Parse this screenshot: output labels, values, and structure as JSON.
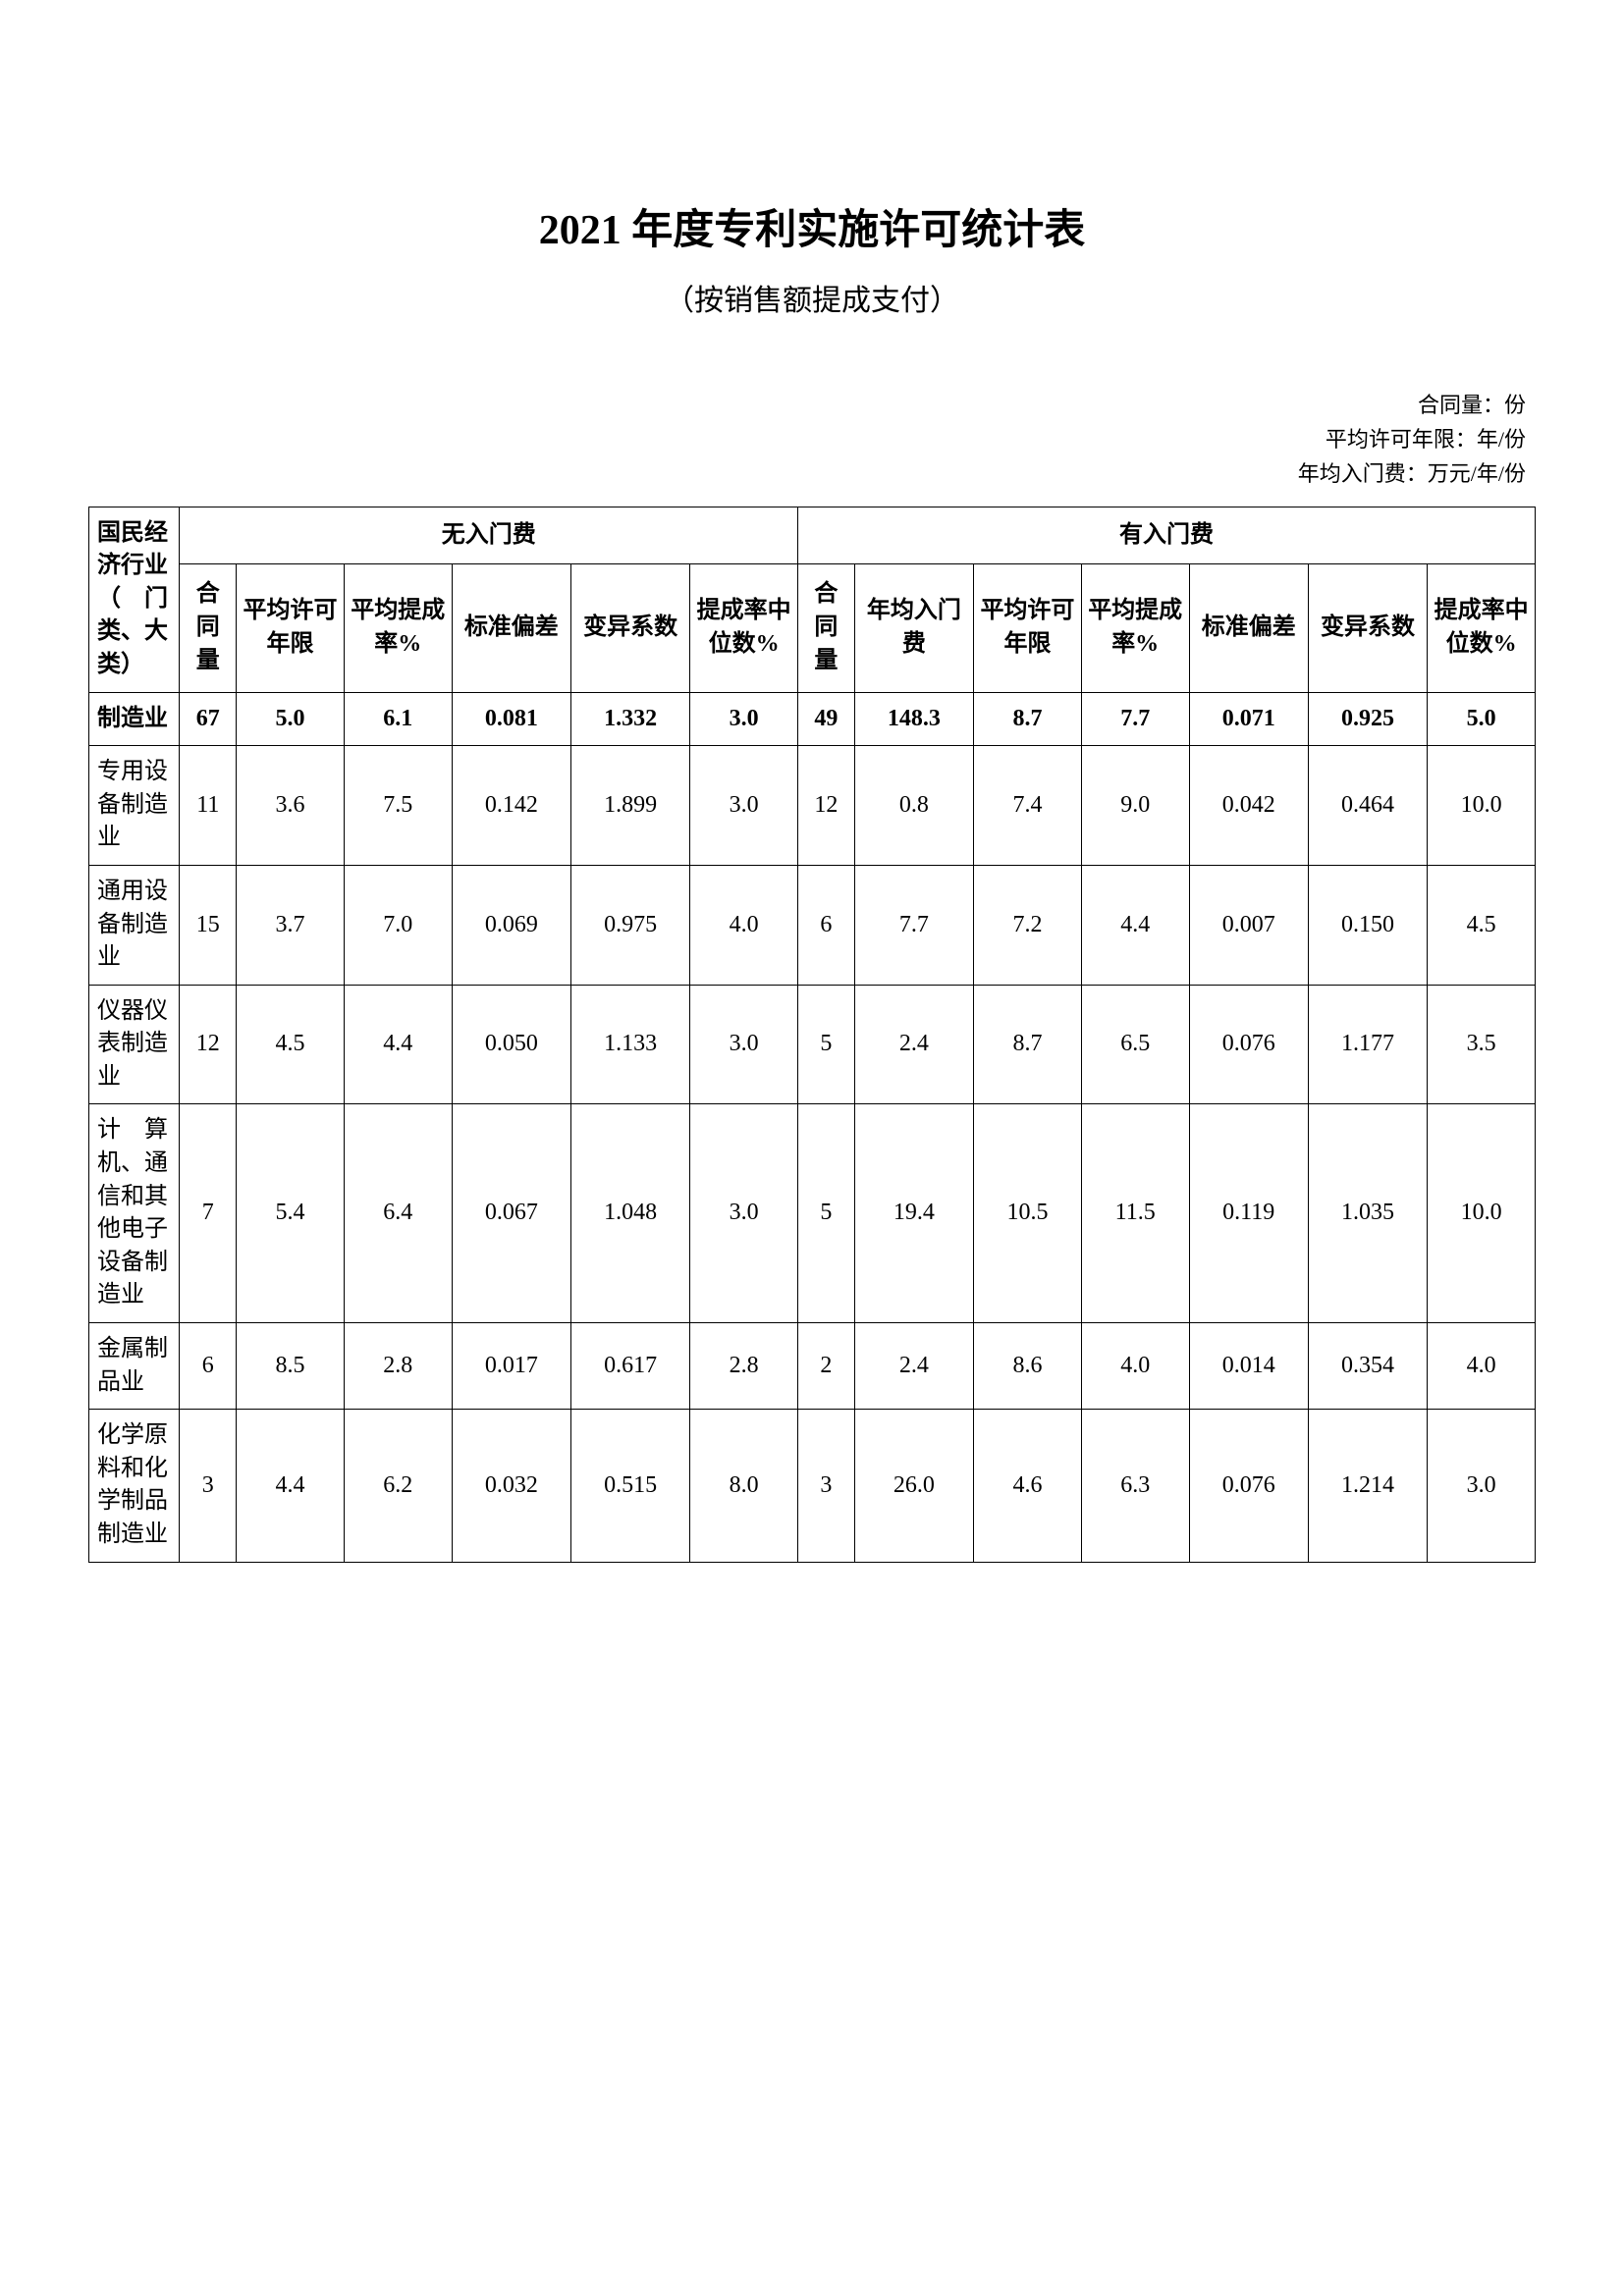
{
  "title": "2021 年度专利实施许可统计表",
  "subtitle": "（按销售额提成支付）",
  "meta": {
    "line1": "合同量：份",
    "line2": "平均许可年限：年/份",
    "line3": "年均入门费：万元/年/份"
  },
  "headers": {
    "category": "国民经济行业（　门类、大类）",
    "group1": "无入门费",
    "group2": "有入门费",
    "g1_col1": "合同量",
    "g1_col2": "平均许可年限",
    "g1_col3": "平均提成率%",
    "g1_col4": "标准偏差",
    "g1_col5": "变异系数",
    "g1_col6": "提成率中位数%",
    "g2_col1": "合同量",
    "g2_col2": "年均入门费",
    "g2_col3": "平均许可年限",
    "g2_col4": "平均提成率%",
    "g2_col5": "标准偏差",
    "g2_col6": "变异系数",
    "g2_col7": "提成率中位数%"
  },
  "rows": [
    {
      "name": "制造业",
      "bold": true,
      "a1": "67",
      "a2": "5.0",
      "a3": "6.1",
      "a4": "0.081",
      "a5": "1.332",
      "a6": "3.0",
      "b1": "49",
      "b2": "148.3",
      "b3": "8.7",
      "b4": "7.7",
      "b5": "0.071",
      "b6": "0.925",
      "b7": "5.0"
    },
    {
      "name": "专用设备制造业",
      "a1": "11",
      "a2": "3.6",
      "a3": "7.5",
      "a4": "0.142",
      "a5": "1.899",
      "a6": "3.0",
      "b1": "12",
      "b2": "0.8",
      "b3": "7.4",
      "b4": "9.0",
      "b5": "0.042",
      "b6": "0.464",
      "b7": "10.0"
    },
    {
      "name": "通用设备制造业",
      "a1": "15",
      "a2": "3.7",
      "a3": "7.0",
      "a4": "0.069",
      "a5": "0.975",
      "a6": "4.0",
      "b1": "6",
      "b2": "7.7",
      "b3": "7.2",
      "b4": "4.4",
      "b5": "0.007",
      "b6": "0.150",
      "b7": "4.5"
    },
    {
      "name": "仪器仪表制造业",
      "a1": "12",
      "a2": "4.5",
      "a3": "4.4",
      "a4": "0.050",
      "a5": "1.133",
      "a6": "3.0",
      "b1": "5",
      "b2": "2.4",
      "b3": "8.7",
      "b4": "6.5",
      "b5": "0.076",
      "b6": "1.177",
      "b7": "3.5"
    },
    {
      "name": "计　算机、通信和其他电子设备制造业",
      "a1": "7",
      "a2": "5.4",
      "a3": "6.4",
      "a4": "0.067",
      "a5": "1.048",
      "a6": "3.0",
      "b1": "5",
      "b2": "19.4",
      "b3": "10.5",
      "b4": "11.5",
      "b5": "0.119",
      "b6": "1.035",
      "b7": "10.0"
    },
    {
      "name": "金属制品业",
      "a1": "6",
      "a2": "8.5",
      "a3": "2.8",
      "a4": "0.017",
      "a5": "0.617",
      "a6": "2.8",
      "b1": "2",
      "b2": "2.4",
      "b3": "8.6",
      "b4": "4.0",
      "b5": "0.014",
      "b6": "0.354",
      "b7": "4.0"
    },
    {
      "name": "化学原料和化学制品制造业",
      "a1": "3",
      "a2": "4.4",
      "a3": "6.2",
      "a4": "0.032",
      "a5": "0.515",
      "a6": "8.0",
      "b1": "3",
      "b2": "26.0",
      "b3": "4.6",
      "b4": "6.3",
      "b5": "0.076",
      "b6": "1.214",
      "b7": "3.0"
    }
  ],
  "style": {
    "background_color": "#ffffff",
    "border_color": "#000000",
    "title_fontsize": 42,
    "subtitle_fontsize": 30,
    "meta_fontsize": 22,
    "table_fontsize": 24
  }
}
